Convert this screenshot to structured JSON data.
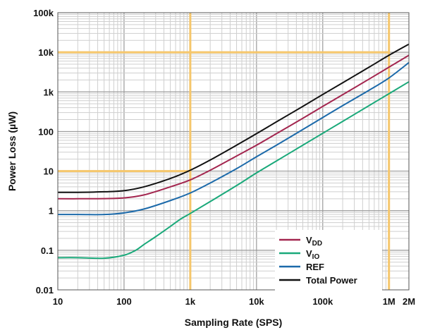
{
  "chart_data": {
    "type": "line",
    "xlabel": "Sampling Rate (SPS)",
    "ylabel": "Power Loss (µW)",
    "xscale": "log",
    "yscale": "log",
    "xlim": [
      10,
      2000000
    ],
    "ylim": [
      0.01,
      100000
    ],
    "grid": true,
    "legend_position": "bottom-right",
    "x_ticks": [
      {
        "value": 10,
        "label": "10"
      },
      {
        "value": 100,
        "label": "100"
      },
      {
        "value": 1000,
        "label": "1k"
      },
      {
        "value": 10000,
        "label": "10k"
      },
      {
        "value": 100000,
        "label": "100k"
      },
      {
        "value": 1000000,
        "label": "1M"
      },
      {
        "value": 2000000,
        "label": "2M"
      }
    ],
    "y_ticks": [
      {
        "value": 0.01,
        "label": "0.01"
      },
      {
        "value": 0.1,
        "label": "0.1"
      },
      {
        "value": 1,
        "label": "1"
      },
      {
        "value": 10,
        "label": "10"
      },
      {
        "value": 100,
        "label": "100"
      },
      {
        "value": 1000,
        "label": "1k"
      },
      {
        "value": 10000,
        "label": "10k"
      },
      {
        "value": 100000,
        "label": "100k"
      }
    ],
    "series": [
      {
        "name": "VDD",
        "name_main": "V",
        "name_sub": "DD",
        "color": "#a3264f",
        "x": [
          10,
          20,
          50,
          100,
          200,
          500,
          1000,
          2000,
          5000,
          10000,
          20000,
          50000,
          100000,
          200000,
          500000,
          1000000,
          2000000
        ],
        "y": [
          2.0,
          2.0,
          2.02,
          2.1,
          2.5,
          4.0,
          6.0,
          10.5,
          24,
          45,
          88,
          215,
          430,
          850,
          2100,
          4200,
          8400
        ]
      },
      {
        "name": "VIO",
        "name_main": "V",
        "name_sub": "IO",
        "color": "#1aa97a",
        "x": [
          10,
          20,
          50,
          100,
          150,
          200,
          300,
          500,
          700,
          1000,
          2000,
          5000,
          10000,
          20000,
          50000,
          100000,
          200000,
          500000,
          1000000,
          2000000
        ],
        "y": [
          0.065,
          0.065,
          0.063,
          0.075,
          0.1,
          0.14,
          0.22,
          0.4,
          0.6,
          0.85,
          1.7,
          4.3,
          9,
          18,
          45,
          90,
          180,
          450,
          900,
          1800
        ]
      },
      {
        "name": "REF",
        "name_main": "REF",
        "name_sub": "",
        "color": "#1c6aaa",
        "x": [
          10,
          20,
          50,
          100,
          200,
          500,
          1000,
          2000,
          5000,
          10000,
          20000,
          50000,
          100000,
          200000,
          500000,
          1000000,
          2000000
        ],
        "y": [
          0.8,
          0.8,
          0.8,
          0.88,
          1.1,
          1.8,
          2.8,
          5.0,
          11.5,
          23,
          45,
          112,
          225,
          450,
          1100,
          2250,
          5500
        ]
      },
      {
        "name": "Total Power",
        "name_main": "Total Power",
        "name_sub": "",
        "color": "#111111",
        "x": [
          10,
          20,
          50,
          100,
          200,
          500,
          1000,
          2000,
          5000,
          10000,
          20000,
          50000,
          100000,
          200000,
          500000,
          1000000,
          2000000
        ],
        "y": [
          2.9,
          2.9,
          3.0,
          3.2,
          4.0,
          6.5,
          10.5,
          19,
          45,
          88,
          175,
          430,
          860,
          1700,
          4200,
          8400,
          16000
        ]
      }
    ],
    "annotations": {
      "color": "#f5c66b",
      "vertical_x": [
        1000,
        1000000
      ],
      "horizontal_y": [
        10,
        10000
      ]
    }
  }
}
